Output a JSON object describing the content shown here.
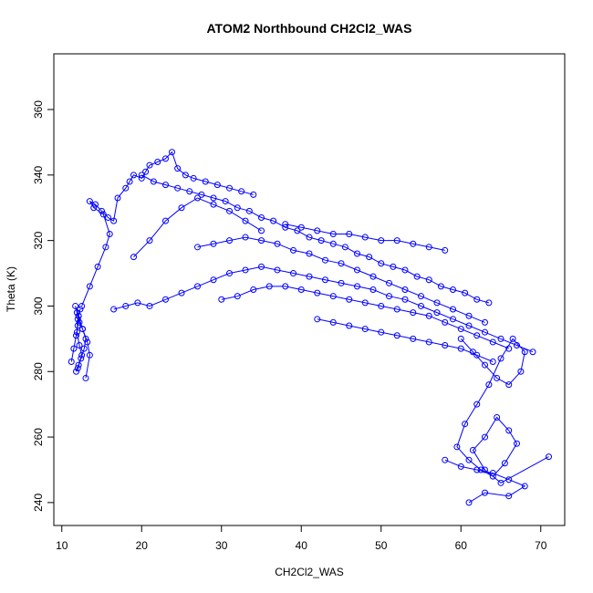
{
  "chart_data": {
    "type": "line",
    "title": "ATOM2 Northbound CH2Cl2_WAS",
    "xlabel": "CH2Cl2_WAS",
    "ylabel": "Theta (K)",
    "xlim": [
      9,
      73
    ],
    "ylim": [
      233,
      377
    ],
    "xticks": [
      10,
      20,
      30,
      40,
      50,
      60,
      70
    ],
    "yticks": [
      240,
      260,
      280,
      300,
      320,
      340,
      360
    ],
    "markers": "open-circle",
    "color": "#0000ff",
    "series": [
      {
        "x": [
          11.2,
          11.5,
          11.8,
          12.0,
          12.1,
          12.3,
          12.0,
          11.9,
          12.2,
          12.5,
          12.1,
          11.8,
          12.0,
          12.4,
          12.8,
          13.0,
          12.6,
          12.2,
          11.9,
          11.7,
          12.1,
          12.6,
          13.2,
          13.5,
          13.0
        ],
        "y": [
          283,
          287,
          291,
          294,
          297,
          299,
          296,
          292,
          288,
          285,
          282,
          280,
          281,
          284,
          287,
          290,
          293,
          295,
          298,
          300,
          297,
          293,
          289,
          285,
          278
        ]
      },
      {
        "x": [
          12.5,
          13.5,
          14.5,
          15.5,
          16.0,
          15.2,
          14.0,
          13.5,
          14.2,
          15.0,
          15.8,
          16.5,
          17.0,
          18.0,
          18.5,
          19.0,
          20.0,
          20.5,
          21.0,
          22.0,
          23.0,
          23.8,
          24.5,
          25.5,
          26.5,
          28.0,
          29.5,
          31.0,
          32.5,
          34.0
        ],
        "y": [
          300,
          306,
          312,
          318,
          322,
          328,
          330,
          332,
          331,
          329,
          327,
          326,
          333,
          336,
          338,
          340,
          339,
          341,
          343,
          344,
          345,
          347,
          342,
          340,
          339,
          338,
          337,
          336,
          335,
          334
        ]
      },
      {
        "x": [
          20.0,
          21.5,
          23.0,
          24.5,
          26.0,
          27.5,
          29.0,
          30.5,
          32.0,
          33.5,
          35.0,
          36.5,
          38.0,
          39.5,
          41.0,
          42.5,
          44.0,
          45.5,
          47.0,
          48.5,
          50.0,
          51.5,
          53.0,
          54.5,
          56.0,
          57.5,
          59.0,
          60.5,
          62.0,
          63.5
        ],
        "y": [
          340,
          338,
          337,
          336,
          335,
          334,
          333,
          332,
          330,
          329,
          327,
          326,
          324,
          323,
          321,
          320,
          319,
          318,
          316,
          315,
          313,
          312,
          311,
          309,
          308,
          306,
          305,
          304,
          302,
          301
        ]
      },
      {
        "x": [
          16.5,
          18.0,
          19.5,
          21.0,
          23.0,
          25.0,
          27.0,
          29.0,
          31.0,
          33.0,
          35.0,
          37.0,
          39.0,
          41.0,
          43.0,
          45.0,
          47.0,
          49.0,
          51.0,
          53.0,
          55.0,
          57.0,
          59.0,
          61.0,
          63.0,
          65.0,
          67.0,
          69.0
        ],
        "y": [
          299,
          300,
          301,
          300,
          302,
          304,
          306,
          308,
          310,
          311,
          312,
          311,
          310,
          309,
          308,
          307,
          306,
          305,
          303,
          302,
          300,
          298,
          296,
          294,
          292,
          290,
          288,
          286
        ]
      },
      {
        "x": [
          27.0,
          29.0,
          31.0,
          33.0,
          35.0,
          37.0,
          39.0,
          41.0,
          43.0,
          45.0,
          47.0,
          49.0,
          51.0,
          53.0,
          55.0,
          57.0,
          59.0,
          61.0,
          63.0
        ],
        "y": [
          318,
          319,
          320,
          321,
          320,
          319,
          317,
          316,
          314,
          313,
          311,
          309,
          307,
          305,
          303,
          301,
          299,
          297,
          295
        ]
      },
      {
        "x": [
          30.0,
          32.0,
          34.0,
          36.0,
          38.0,
          40.0,
          42.0,
          44.0,
          46.0,
          48.0,
          50.0,
          52.0,
          54.0,
          56.0,
          58.0,
          60.0,
          62.0,
          64.0,
          66.0
        ],
        "y": [
          302,
          303,
          305,
          306,
          306,
          305,
          304,
          303,
          302,
          301,
          300,
          299,
          298,
          297,
          295,
          293,
          291,
          289,
          287
        ]
      },
      {
        "x": [
          38.0,
          40.0,
          42.0,
          44.0,
          46.0,
          48.0,
          50.0,
          52.0,
          54.0,
          56.0,
          58.0
        ],
        "y": [
          325,
          324,
          323,
          322,
          322,
          321,
          320,
          320,
          319,
          318,
          317
        ]
      },
      {
        "x": [
          60.0,
          61.5,
          63.0,
          64.5,
          66.0,
          67.5,
          68.0,
          66.5,
          65.0,
          63.5,
          62.0,
          60.5,
          59.5,
          61.0,
          62.5,
          64.0,
          65.5,
          67.0,
          66.0,
          64.5,
          63.0,
          61.5,
          63.0,
          65.0,
          71.0
        ],
        "y": [
          290,
          286,
          282,
          278,
          276,
          280,
          286,
          290,
          284,
          276,
          270,
          264,
          257,
          253,
          250,
          248,
          252,
          258,
          262,
          266,
          260,
          256,
          250,
          246,
          254
        ]
      },
      {
        "x": [
          58.0,
          60.0,
          62.0,
          64.0,
          66.0,
          68.0,
          66.0,
          63.0,
          61.0
        ],
        "y": [
          253,
          251,
          250,
          249,
          247,
          245,
          242,
          243,
          240
        ]
      },
      {
        "x": [
          42.0,
          44.0,
          46.0,
          48.0,
          50.0,
          52.0,
          54.0,
          56.0,
          58.0,
          60.0,
          62.0,
          64.0
        ],
        "y": [
          296,
          295,
          294,
          293,
          292,
          291,
          290,
          289,
          288,
          287,
          285,
          283
        ]
      },
      {
        "x": [
          19.0,
          21.0,
          23.0,
          25.0,
          27.0,
          29.0,
          31.0,
          33.0,
          35.0
        ],
        "y": [
          315,
          320,
          326,
          330,
          333,
          331,
          329,
          326,
          323
        ]
      }
    ]
  }
}
